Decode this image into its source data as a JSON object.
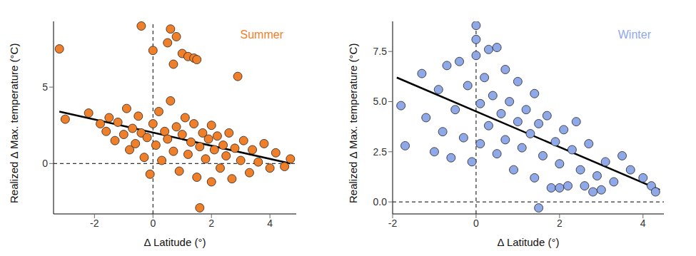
{
  "chart_data": [
    {
      "type": "scatter",
      "title": "Summer",
      "x_label": "Δ Latitude (°)",
      "y_label": "Realized Δ Max. temperature (°C)",
      "xlim": [
        -3.4,
        4.9
      ],
      "ylim": [
        -3.3,
        9.3
      ],
      "xticks": [
        -2,
        0,
        2,
        4
      ],
      "yticks": [
        0,
        5
      ],
      "color": "#f07f2a",
      "x": [
        -3.2,
        -3.0,
        -2.2,
        -1.8,
        -1.6,
        -1.5,
        -1.3,
        -1.2,
        -1.0,
        -0.9,
        -0.8,
        -0.7,
        -0.6,
        -0.5,
        -0.4,
        -0.4,
        -0.3,
        -0.2,
        -0.1,
        0.0,
        0.0,
        0.1,
        0.2,
        0.3,
        0.4,
        0.5,
        0.5,
        0.6,
        0.6,
        0.7,
        0.7,
        0.8,
        0.8,
        0.9,
        1.0,
        1.0,
        1.1,
        1.2,
        1.2,
        1.3,
        1.4,
        1.4,
        1.5,
        1.5,
        1.6,
        1.6,
        1.7,
        1.8,
        1.9,
        2.0,
        2.0,
        2.1,
        2.2,
        2.3,
        2.4,
        2.5,
        2.6,
        2.7,
        2.8,
        2.9,
        3.0,
        3.1,
        3.3,
        3.4,
        3.6,
        3.8,
        4.0,
        4.2,
        4.5,
        4.7
      ],
      "y": [
        7.5,
        2.9,
        3.3,
        2.6,
        2.1,
        3.0,
        1.5,
        2.7,
        1.9,
        3.6,
        0.9,
        2.3,
        1.3,
        3.1,
        9.0,
        2.0,
        0.4,
        1.7,
        -0.7,
        7.4,
        2.6,
        1.2,
        3.4,
        0.2,
        2.1,
        7.9,
        1.6,
        8.8,
        4.1,
        6.5,
        0.8,
        8.3,
        2.4,
        -0.5,
        7.2,
        1.9,
        3.0,
        7.0,
        0.6,
        1.4,
        6.9,
        2.6,
        6.8,
        -0.9,
        -2.9,
        1.1,
        2.0,
        0.3,
        1.6,
        -1.2,
        2.5,
        0.9,
        1.8,
        -0.3,
        1.2,
        0.5,
        2.0,
        -1.0,
        1.0,
        5.7,
        0.2,
        1.5,
        -0.6,
        0.9,
        0.1,
        1.3,
        -0.3,
        0.7,
        -0.2,
        0.3
      ],
      "fit": {
        "x": [
          -3.2,
          4.7
        ],
        "y": [
          3.4,
          0.0
        ]
      },
      "hlines": [
        0
      ],
      "vlines": [
        0
      ]
    },
    {
      "type": "scatter",
      "title": "Winter",
      "x_label": "Δ Latitude (°)",
      "y_label": "Realized Δ Max. temperature (°C)",
      "xlim": [
        -2.0,
        4.5
      ],
      "ylim": [
        -0.6,
        9.0
      ],
      "xticks": [
        -2,
        0,
        2,
        4
      ],
      "yticks": [
        {
          "value": 0,
          "label": "0.0"
        },
        {
          "value": 2.5,
          "label": "2.5"
        },
        {
          "value": 5,
          "label": "5.0"
        },
        {
          "value": 7.5,
          "label": "7.5"
        }
      ],
      "color": "#8fa8e8",
      "x": [
        -1.8,
        -1.7,
        -1.3,
        -1.2,
        -1.0,
        -0.9,
        -0.8,
        -0.7,
        -0.6,
        -0.5,
        -0.4,
        -0.3,
        -0.2,
        -0.1,
        0.0,
        0.0,
        0.0,
        0.1,
        0.1,
        0.2,
        0.3,
        0.3,
        0.4,
        0.5,
        0.5,
        0.6,
        0.7,
        0.7,
        0.8,
        0.9,
        1.0,
        1.0,
        1.1,
        1.2,
        1.3,
        1.4,
        1.4,
        1.5,
        1.5,
        1.6,
        1.7,
        1.8,
        1.9,
        2.0,
        2.0,
        2.1,
        2.2,
        2.3,
        2.4,
        2.5,
        2.6,
        2.7,
        2.8,
        2.9,
        3.0,
        3.1,
        3.3,
        3.5,
        3.7,
        4.0,
        4.2,
        4.3
      ],
      "y": [
        4.8,
        2.8,
        6.4,
        4.2,
        2.5,
        5.6,
        3.5,
        6.8,
        2.2,
        4.6,
        7.0,
        3.2,
        5.8,
        2.0,
        8.8,
        8.1,
        7.3,
        4.9,
        2.9,
        6.2,
        7.6,
        3.8,
        5.3,
        7.7,
        2.4,
        4.4,
        6.6,
        3.1,
        5.0,
        1.6,
        4.0,
        6.0,
        2.7,
        4.6,
        3.4,
        5.4,
        1.2,
        -0.3,
        3.9,
        2.3,
        4.3,
        0.7,
        3.0,
        0.7,
        1.9,
        3.6,
        0.8,
        2.6,
        4.0,
        1.6,
        0.8,
        2.9,
        0.5,
        1.3,
        0.6,
        2.0,
        1.0,
        2.3,
        1.6,
        1.2,
        0.8,
        0.5
      ],
      "fit": {
        "x": [
          -1.9,
          4.4
        ],
        "y": [
          6.2,
          0.6
        ]
      },
      "hlines": [
        0
      ],
      "vlines": [
        0
      ]
    }
  ]
}
